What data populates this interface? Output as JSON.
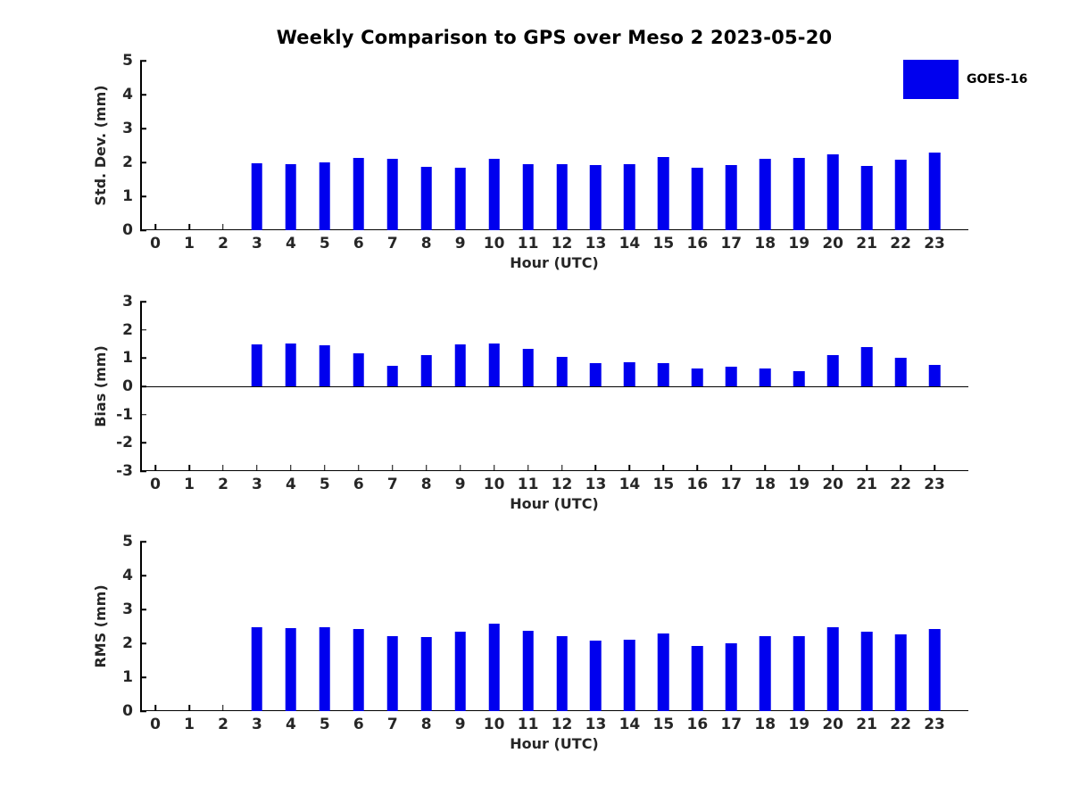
{
  "figure": {
    "title": "Weekly Comparison to GPS over Meso 2 2023-05-20",
    "background": "#ffffff"
  },
  "legend": {
    "label": "GOES-16",
    "swatch_color": "#0000ee",
    "position": "upper-right"
  },
  "colors": {
    "bar": "#0000ee",
    "axis": "#000000",
    "text": "#262626"
  },
  "chart_data": [
    {
      "type": "bar",
      "series": "GOES-16",
      "ylabel": "Std. Dev. (mm)",
      "xlabel": "Hour (UTC)",
      "x": [
        0,
        1,
        2,
        3,
        4,
        5,
        6,
        7,
        8,
        9,
        10,
        11,
        12,
        13,
        14,
        15,
        16,
        17,
        18,
        19,
        20,
        21,
        22,
        23
      ],
      "values": [
        null,
        null,
        null,
        1.97,
        1.94,
        1.99,
        2.12,
        2.1,
        1.88,
        1.84,
        2.11,
        1.95,
        1.94,
        1.92,
        1.95,
        2.16,
        1.83,
        1.91,
        2.11,
        2.13,
        2.25,
        1.89,
        2.07,
        2.3
      ],
      "ylim": [
        0,
        5
      ],
      "yticks": [
        0,
        1,
        2,
        3,
        4,
        5
      ],
      "xlim": [
        -0.45,
        24
      ],
      "bar_width_units": 0.33,
      "zero_line": false,
      "grid": false
    },
    {
      "type": "bar",
      "series": "GOES-16",
      "ylabel": "Bias (mm)",
      "xlabel": "Hour (UTC)",
      "x": [
        0,
        1,
        2,
        3,
        4,
        5,
        6,
        7,
        8,
        9,
        10,
        11,
        12,
        13,
        14,
        15,
        16,
        17,
        18,
        19,
        20,
        21,
        22,
        23
      ],
      "values": [
        null,
        null,
        null,
        1.48,
        1.52,
        1.45,
        1.17,
        0.72,
        1.1,
        1.48,
        1.51,
        1.33,
        1.04,
        0.83,
        0.84,
        0.83,
        0.62,
        0.71,
        0.64,
        0.55,
        1.1,
        1.4,
        1.0,
        0.75
      ],
      "ylim": [
        -3,
        3
      ],
      "yticks": [
        -3,
        -2,
        -1,
        0,
        1,
        2,
        3
      ],
      "xlim": [
        -0.45,
        24
      ],
      "bar_width_units": 0.33,
      "zero_line": true,
      "grid": false
    },
    {
      "type": "bar",
      "series": "GOES-16",
      "ylabel": "RMS (mm)",
      "xlabel": "Hour (UTC)",
      "x": [
        0,
        1,
        2,
        3,
        4,
        5,
        6,
        7,
        8,
        9,
        10,
        11,
        12,
        13,
        14,
        15,
        16,
        17,
        18,
        19,
        20,
        21,
        22,
        23
      ],
      "values": [
        null,
        null,
        null,
        2.47,
        2.45,
        2.47,
        2.42,
        2.21,
        2.19,
        2.35,
        2.57,
        2.36,
        2.21,
        2.07,
        2.1,
        2.29,
        1.91,
        2.01,
        2.2,
        2.2,
        2.48,
        2.33,
        2.27,
        2.41
      ],
      "ylim": [
        0,
        5
      ],
      "yticks": [
        0,
        1,
        2,
        3,
        4,
        5
      ],
      "xlim": [
        -0.45,
        24
      ],
      "bar_width_units": 0.33,
      "zero_line": false,
      "grid": false
    }
  ]
}
